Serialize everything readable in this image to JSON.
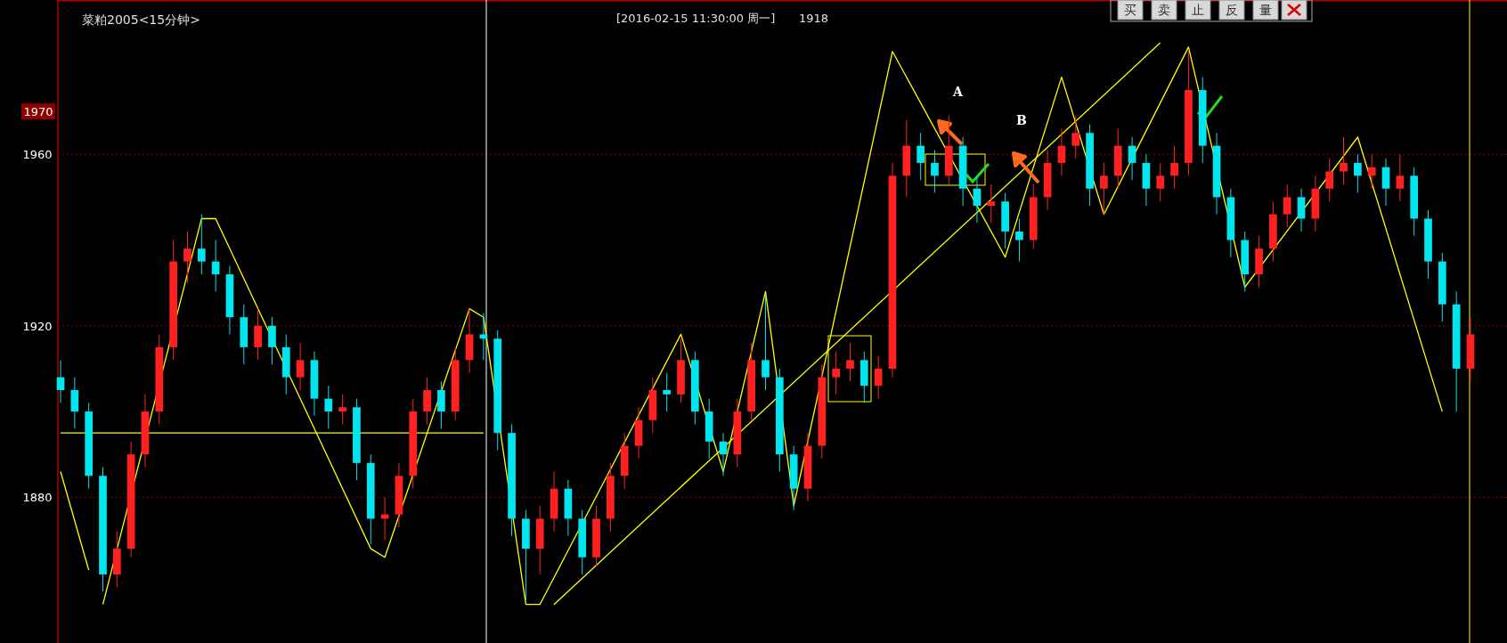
{
  "chart_data": {
    "type": "candlestick",
    "title": "菜粕2005<15分钟>",
    "categories": [
      null,
      null,
      null,
      null,
      null,
      null,
      null,
      null,
      null,
      null,
      null,
      null,
      null,
      null,
      null,
      null,
      null,
      null,
      null,
      null,
      null,
      null,
      null,
      null,
      null,
      null,
      null,
      null,
      null,
      null,
      null,
      null,
      null,
      null,
      null,
      null,
      null,
      null,
      null,
      null,
      null,
      null,
      null,
      null,
      null,
      null,
      null,
      null,
      null,
      null,
      null,
      null,
      null,
      null,
      null,
      null,
      null,
      null,
      null,
      null,
      null,
      null,
      null,
      null,
      null,
      null,
      null,
      null,
      null,
      null,
      null,
      null,
      null,
      null,
      null,
      null,
      null,
      null,
      null,
      null,
      null,
      null,
      null,
      null,
      null,
      null,
      null,
      null,
      null,
      null,
      null,
      null,
      null,
      null,
      null,
      null,
      null,
      null,
      null,
      null,
      null
    ],
    "ohlc": [
      [
        1908,
        1912,
        1902,
        1905
      ],
      [
        1905,
        1908,
        1896,
        1900
      ],
      [
        1900,
        1902,
        1882,
        1885
      ],
      [
        1885,
        1887,
        1858,
        1862
      ],
      [
        1862,
        1872,
        1859,
        1868
      ],
      [
        1868,
        1893,
        1866,
        1890
      ],
      [
        1890,
        1904,
        1887,
        1900
      ],
      [
        1900,
        1918,
        1897,
        1915
      ],
      [
        1915,
        1940,
        1912,
        1935
      ],
      [
        1935,
        1942,
        1930,
        1938
      ],
      [
        1938,
        1946,
        1932,
        1935
      ],
      [
        1935,
        1940,
        1928,
        1932
      ],
      [
        1932,
        1934,
        1918,
        1922
      ],
      [
        1922,
        1925,
        1911,
        1915
      ],
      [
        1915,
        1924,
        1912,
        1920
      ],
      [
        1920,
        1922,
        1911,
        1915
      ],
      [
        1915,
        1918,
        1904,
        1908
      ],
      [
        1908,
        1916,
        1905,
        1912
      ],
      [
        1912,
        1914,
        1899,
        1903
      ],
      [
        1903,
        1906,
        1896,
        1900
      ],
      [
        1900,
        1904,
        1897,
        1901
      ],
      [
        1901,
        1903,
        1884,
        1888
      ],
      [
        1888,
        1890,
        1869,
        1875
      ],
      [
        1875,
        1880,
        1870,
        1876
      ],
      [
        1876,
        1888,
        1873,
        1885
      ],
      [
        1885,
        1903,
        1882,
        1900
      ],
      [
        1900,
        1908,
        1897,
        1905
      ],
      [
        1905,
        1907,
        1896,
        1900
      ],
      [
        1900,
        1915,
        1898,
        1912
      ],
      [
        1912,
        1924,
        1909,
        1918
      ],
      [
        1918,
        1923,
        1912,
        1917
      ],
      [
        1917,
        1919,
        1891,
        1895
      ],
      [
        1895,
        1897,
        1871,
        1875
      ],
      [
        1875,
        1877,
        1856,
        1868
      ],
      [
        1868,
        1878,
        1862,
        1875
      ],
      [
        1875,
        1886,
        1872,
        1882
      ],
      [
        1882,
        1884,
        1871,
        1875
      ],
      [
        1875,
        1877,
        1862,
        1866
      ],
      [
        1866,
        1878,
        1864,
        1875
      ],
      [
        1875,
        1888,
        1872,
        1885
      ],
      [
        1885,
        1895,
        1882,
        1892
      ],
      [
        1892,
        1901,
        1889,
        1898
      ],
      [
        1898,
        1908,
        1895,
        1905
      ],
      [
        1905,
        1909,
        1900,
        1904
      ],
      [
        1904,
        1917,
        1902,
        1912
      ],
      [
        1912,
        1914,
        1897,
        1900
      ],
      [
        1900,
        1903,
        1889,
        1893
      ],
      [
        1893,
        1895,
        1885,
        1890
      ],
      [
        1890,
        1903,
        1887,
        1900
      ],
      [
        1900,
        1916,
        1898,
        1912
      ],
      [
        1912,
        1927,
        1905,
        1908
      ],
      [
        1908,
        1910,
        1886,
        1890
      ],
      [
        1890,
        1892,
        1877,
        1882
      ],
      [
        1882,
        1895,
        1879,
        1892
      ],
      [
        1892,
        1911,
        1889,
        1908
      ],
      [
        1908,
        1914,
        1904,
        1910
      ],
      [
        1910,
        1916,
        1907,
        1912
      ],
      [
        1912,
        1914,
        1902,
        1906
      ],
      [
        1906,
        1913,
        1903,
        1910
      ],
      [
        1910,
        1958,
        1908,
        1955
      ],
      [
        1955,
        1968,
        1950,
        1962
      ],
      [
        1962,
        1965,
        1954,
        1958
      ],
      [
        1958,
        1961,
        1951,
        1955
      ],
      [
        1955,
        1969,
        1953,
        1962
      ],
      [
        1962,
        1964,
        1948,
        1952
      ],
      [
        1952,
        1955,
        1944,
        1948
      ],
      [
        1948,
        1953,
        1944,
        1949
      ],
      [
        1949,
        1951,
        1938,
        1942
      ],
      [
        1942,
        1945,
        1935,
        1940
      ],
      [
        1940,
        1953,
        1938,
        1950
      ],
      [
        1950,
        1961,
        1947,
        1958
      ],
      [
        1958,
        1966,
        1955,
        1962
      ],
      [
        1962,
        1969,
        1959,
        1965
      ],
      [
        1965,
        1967,
        1948,
        1952
      ],
      [
        1952,
        1958,
        1946,
        1955
      ],
      [
        1955,
        1966,
        1952,
        1962
      ],
      [
        1962,
        1964,
        1954,
        1958
      ],
      [
        1958,
        1960,
        1948,
        1952
      ],
      [
        1952,
        1958,
        1949,
        1955
      ],
      [
        1955,
        1962,
        1952,
        1958
      ],
      [
        1958,
        1984,
        1955,
        1975
      ],
      [
        1975,
        1978,
        1958,
        1962
      ],
      [
        1962,
        1965,
        1946,
        1950
      ],
      [
        1950,
        1952,
        1936,
        1940
      ],
      [
        1940,
        1942,
        1928,
        1932
      ],
      [
        1932,
        1941,
        1929,
        1938
      ],
      [
        1938,
        1949,
        1935,
        1946
      ],
      [
        1946,
        1953,
        1943,
        1950
      ],
      [
        1950,
        1952,
        1942,
        1945
      ],
      [
        1945,
        1955,
        1942,
        1952
      ],
      [
        1952,
        1959,
        1949,
        1956
      ],
      [
        1956,
        1964,
        1953,
        1958
      ],
      [
        1958,
        1960,
        1951,
        1955
      ],
      [
        1955,
        1960,
        1952,
        1957
      ],
      [
        1957,
        1959,
        1948,
        1952
      ],
      [
        1952,
        1960,
        1949,
        1955
      ],
      [
        1955,
        1957,
        1941,
        1945
      ],
      [
        1945,
        1947,
        1931,
        1935
      ],
      [
        1935,
        1937,
        1921,
        1925
      ],
      [
        1925,
        1928,
        1900,
        1910
      ],
      [
        1910,
        1922,
        1907,
        1918
      ]
    ],
    "series": [
      {
        "type": "line",
        "color": "#ffff00",
        "values": [
          1886,
          null,
          1863,
          null,
          null,
          null,
          null,
          null,
          null,
          null,
          null,
          null,
          null,
          null,
          null,
          null,
          null,
          null,
          null,
          null,
          null,
          null,
          null,
          null,
          null,
          null,
          null,
          null,
          null,
          null,
          null,
          null,
          null,
          null,
          null,
          null,
          null,
          null,
          null,
          null,
          null,
          null,
          null,
          null,
          null,
          null,
          null,
          null,
          null,
          null,
          null,
          null,
          null,
          null,
          null,
          null,
          null,
          null,
          null,
          null,
          null,
          null,
          null,
          null,
          null,
          null,
          null,
          null,
          null,
          null,
          null,
          null,
          null,
          null,
          null,
          null,
          null,
          null,
          null,
          null,
          null,
          null,
          null,
          null,
          null,
          null,
          null,
          null,
          null,
          null,
          null,
          null,
          null,
          null,
          null,
          null,
          null,
          null,
          null,
          null,
          null
        ]
      },
      {
        "type": "line",
        "color": "#ffff00",
        "values": [
          null,
          null,
          null,
          1855,
          null,
          null,
          null,
          null,
          null,
          null,
          1945,
          1945,
          null,
          null,
          null,
          null,
          null,
          null,
          null,
          null,
          null,
          null,
          1868,
          1866,
          null,
          null,
          null,
          null,
          null,
          1924,
          1922,
          null,
          null,
          1855,
          1855,
          null,
          null,
          null,
          null,
          null,
          null,
          null,
          null,
          null,
          1918,
          null,
          null,
          1886,
          null,
          null,
          1928,
          null,
          1878,
          null,
          null,
          null,
          null,
          null,
          null,
          1984,
          null,
          null,
          null,
          null,
          null,
          null,
          null,
          1936,
          null,
          null,
          null,
          1978,
          null,
          null,
          1946,
          null,
          null,
          null,
          null,
          null,
          1985,
          null,
          null,
          null,
          1929,
          null,
          null,
          null,
          null,
          null,
          null,
          null,
          1964,
          null,
          null,
          null,
          null,
          null,
          1900,
          null,
          null
        ]
      },
      {
        "type": "line",
        "color": "#ffff00",
        "values": [
          null,
          null,
          null,
          null,
          null,
          null,
          null,
          null,
          null,
          null,
          null,
          null,
          null,
          null,
          null,
          null,
          null,
          null,
          null,
          null,
          null,
          null,
          null,
          null,
          null,
          null,
          null,
          null,
          null,
          null,
          null,
          null,
          null,
          null,
          null,
          1855,
          null,
          null,
          null,
          null,
          null,
          null,
          null,
          null,
          null,
          null,
          null,
          null,
          null,
          null,
          null,
          null,
          null,
          null,
          null,
          null,
          null,
          null,
          null,
          null,
          null,
          null,
          null,
          null,
          null,
          null,
          null,
          null,
          null,
          null,
          null,
          null,
          null,
          null,
          null,
          null,
          null,
          null,
          1986,
          null,
          null,
          null,
          null,
          null,
          null,
          null,
          null,
          null,
          null,
          null,
          null,
          null,
          null,
          null,
          null,
          null,
          null,
          null,
          null,
          null,
          null
        ]
      },
      {
        "type": "line",
        "color": "#ffff00",
        "values": [
          1895,
          null,
          null,
          null,
          null,
          null,
          null,
          null,
          null,
          null,
          null,
          null,
          null,
          null,
          null,
          null,
          null,
          null,
          null,
          null,
          null,
          null,
          null,
          null,
          null,
          null,
          null,
          null,
          null,
          null,
          1895,
          null,
          null,
          null,
          null,
          null,
          null,
          null,
          null,
          null,
          null,
          null,
          null,
          null,
          null,
          null,
          null,
          null,
          null,
          null,
          null,
          null,
          null,
          null,
          null,
          null,
          null,
          null,
          null,
          null,
          null,
          null,
          null,
          null,
          null,
          null,
          null,
          null,
          null,
          null,
          null,
          null,
          null,
          null,
          null,
          null,
          null,
          null,
          null,
          null,
          null,
          null,
          null,
          null,
          null,
          null,
          null,
          null,
          null,
          null,
          null,
          null,
          null,
          null,
          null,
          null,
          null,
          null,
          null,
          null,
          null
        ]
      }
    ],
    "ylim": [
      1846,
      1996
    ],
    "yticks": [
      1880,
      1920,
      1960,
      1970
    ],
    "grid": "y",
    "marker": "none",
    "annotations": [
      "[2016-02-15  11:30:00 周一]",
      "1918",
      "A",
      "B",
      "买",
      "卖",
      "止",
      "反",
      "量"
    ]
  }
}
